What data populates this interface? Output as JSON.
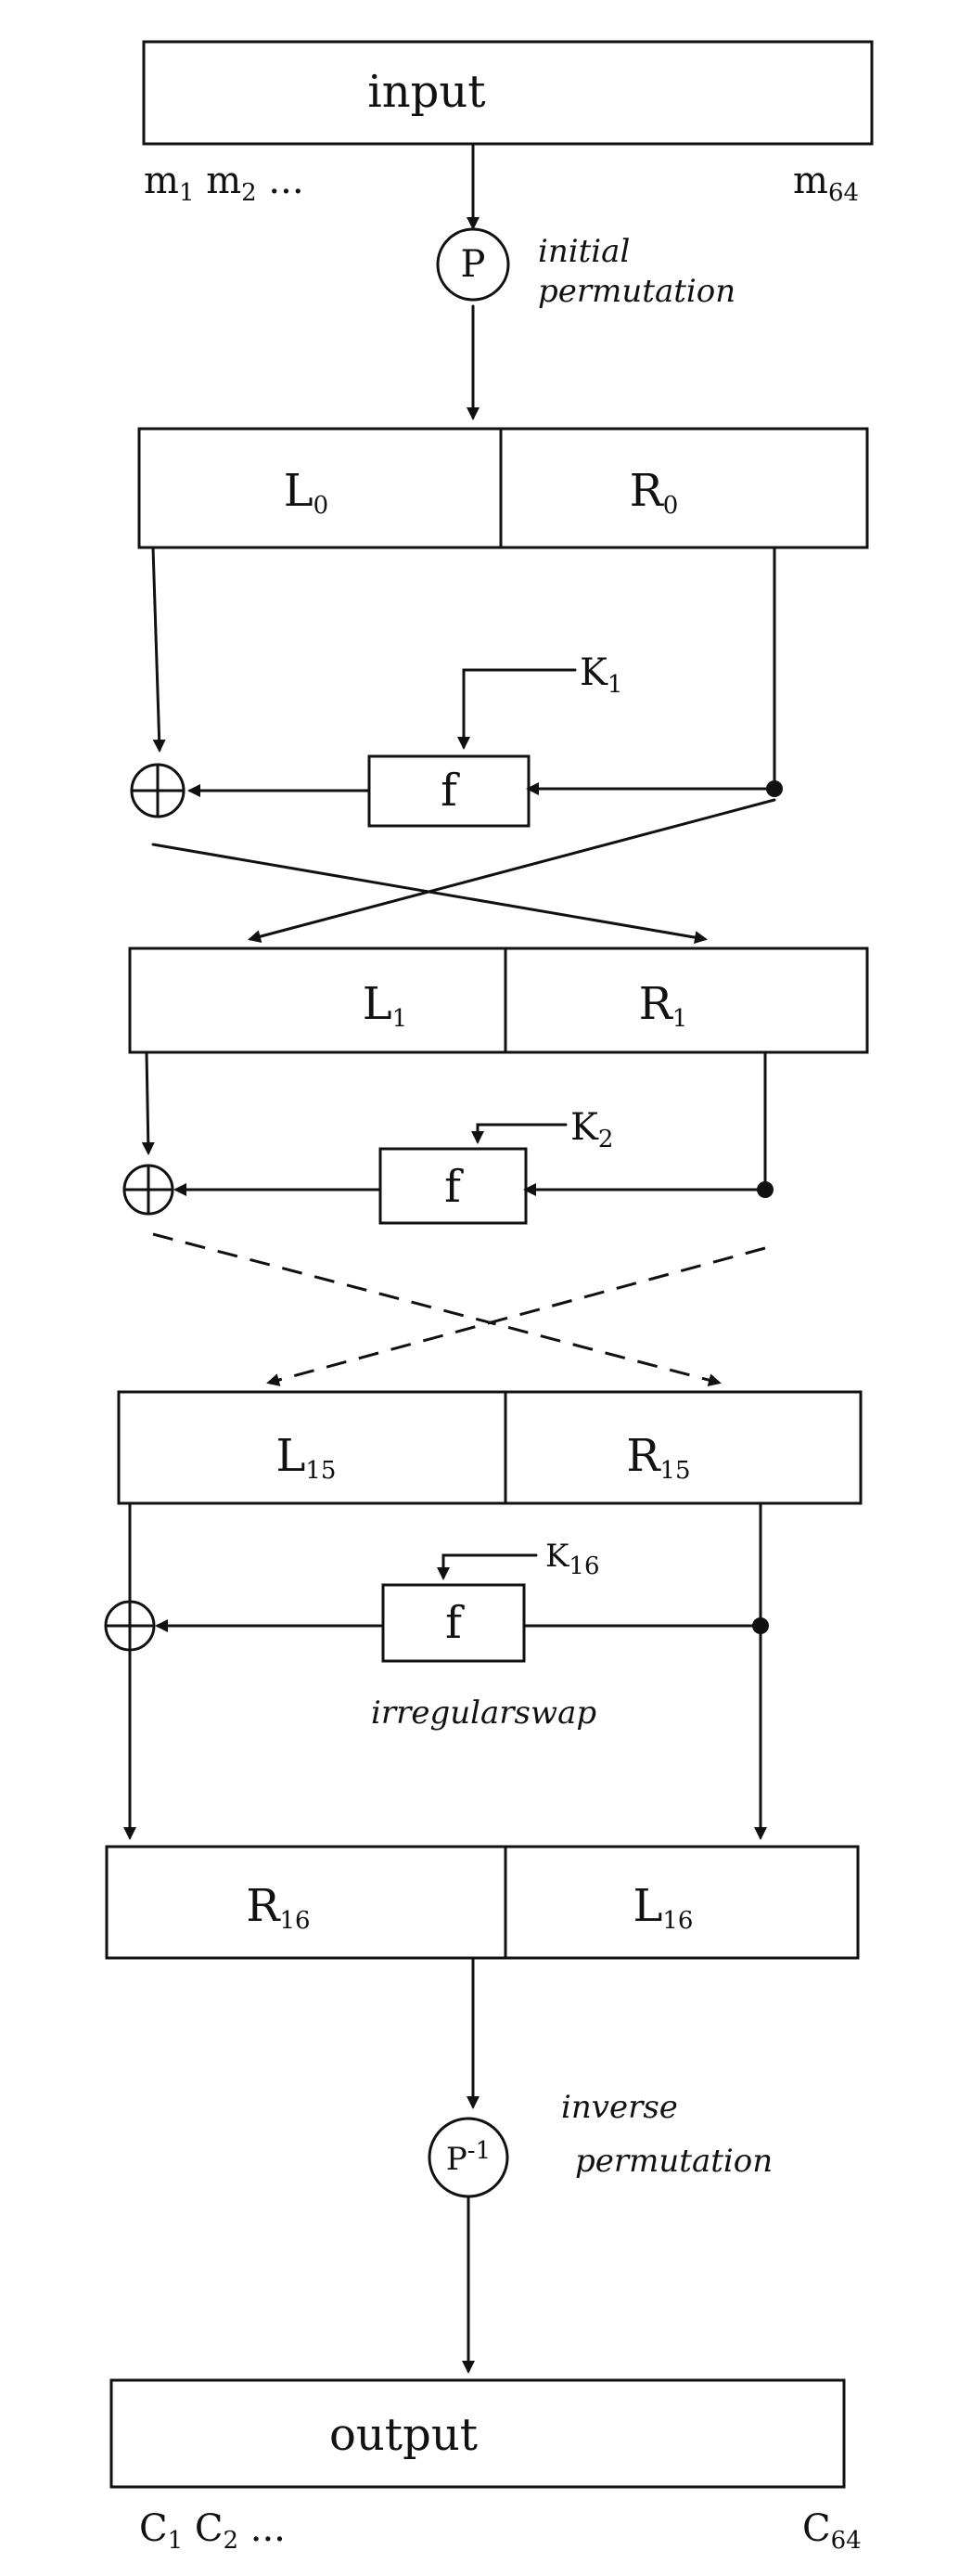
{
  "input": {
    "label": "input",
    "first_bits": "m",
    "first_idx1": "1",
    "first_idx2": "2",
    "dots": "...",
    "last_bit": "m",
    "last_idx": "64"
  },
  "initial_permutation": {
    "symbol": "P",
    "caption_line1": "initial",
    "caption_line2": "permutation"
  },
  "round0": {
    "left": "L",
    "left_idx": "0",
    "right": "R",
    "right_idx": "0"
  },
  "round1_key": {
    "k": "K",
    "idx": "1"
  },
  "function_label": "f",
  "round1": {
    "left": "L",
    "left_idx": "1",
    "right": "R",
    "right_idx": "1"
  },
  "round2_key": {
    "k": "K",
    "idx": "2"
  },
  "round15": {
    "left": "L",
    "left_idx": "15",
    "right": "R",
    "right_idx": "15"
  },
  "round16_key": {
    "k": "K",
    "idx": "16"
  },
  "irregular_swap": "irregularswap",
  "round16": {
    "left": "R",
    "left_idx": "16",
    "right": "L",
    "right_idx": "16"
  },
  "inverse_permutation": {
    "symbol": "P",
    "sup": "-1",
    "caption_line1": "inverse",
    "caption_line2": "permutation"
  },
  "output": {
    "label": "output",
    "first_bits": "C",
    "first_idx1": "1",
    "first_idx2": "2",
    "dots": "...",
    "last_bit": "C",
    "last_idx": "64"
  }
}
